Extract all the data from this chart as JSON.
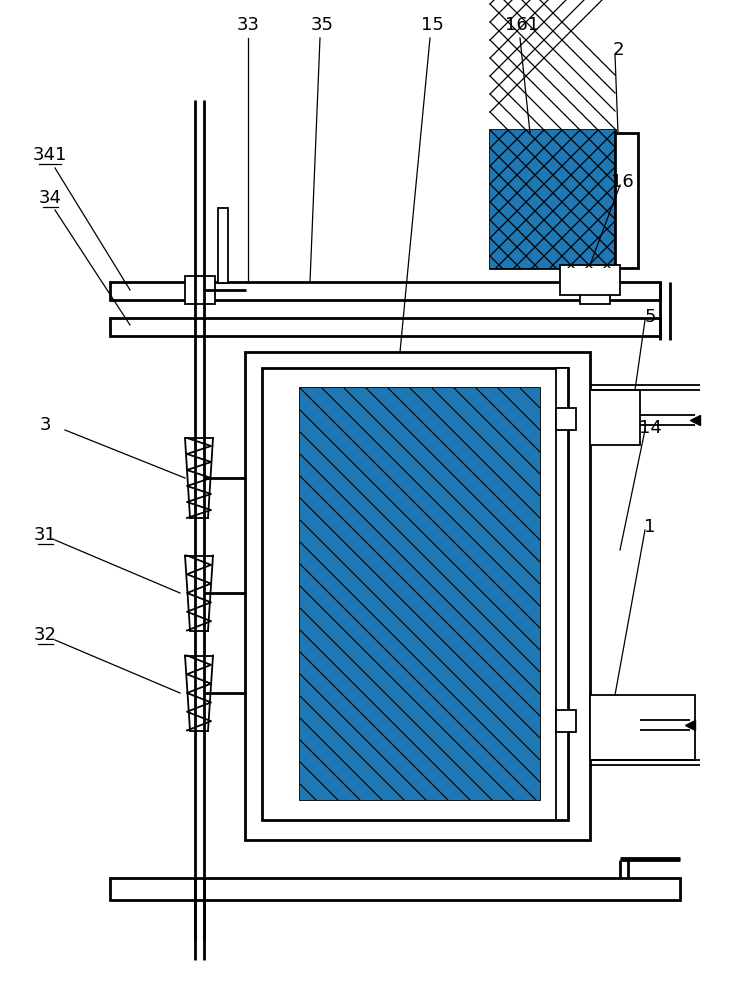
{
  "bg_color": "#ffffff",
  "lc": "#000000",
  "lw": 1.3,
  "lw2": 2.0
}
